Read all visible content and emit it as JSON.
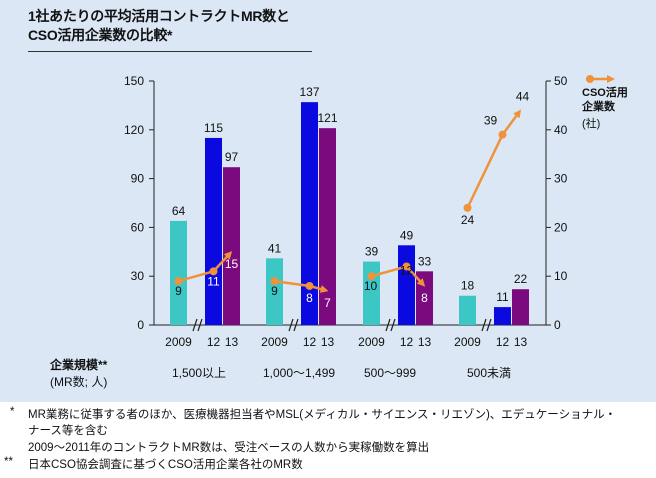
{
  "title_line1": "1社あたりの平均活用コントラクトMR数と",
  "title_line2": "CSO活用企業数の比較*",
  "x_heading": "企業規模**",
  "x_unit": "(MR数; 人)",
  "right_axis_title_line1": "CSO活用",
  "right_axis_title_line2": "企業数",
  "right_axis_unit": "(社)",
  "footnotes": {
    "mark1": "*",
    "line1": "MR業務に従事する者のほか、医療機器担当者やMSL(メディカル・サイエンス・リエゾン)、エデュケーショナル・",
    "line2": "ナース等を含む",
    "line3": "2009〜2011年のコントラクトMR数は、受注ベースの人数から実稼働数を算出",
    "mark2": "**",
    "line4": "日本CSO協会調査に基づくCSO活用企業各社のMR数"
  },
  "chart_data": {
    "type": "bar",
    "categories": [
      "1,500以上",
      "1,000〜1,499",
      "500〜999",
      "500未満"
    ],
    "bar_year_labels": [
      "2009",
      "12",
      "13"
    ],
    "left_axis": {
      "ylim": [
        0,
        150
      ],
      "ticks": [
        0,
        30,
        60,
        90,
        120,
        150
      ]
    },
    "right_axis": {
      "ylim": [
        0,
        50
      ],
      "ticks": [
        0,
        10,
        20,
        30,
        40,
        50
      ]
    },
    "bars": [
      {
        "values": [
          64,
          115,
          97
        ]
      },
      {
        "values": [
          41,
          137,
          121
        ]
      },
      {
        "values": [
          39,
          49,
          33
        ]
      },
      {
        "values": [
          18,
          11,
          22
        ]
      }
    ],
    "line": {
      "name": "CSO活用企業数",
      "groups": [
        [
          9,
          11,
          15
        ],
        [
          9,
          8,
          7
        ],
        [
          10,
          12,
          8
        ],
        [
          24,
          39,
          44
        ]
      ]
    },
    "colors": {
      "bar_2009": "#3cc7c4",
      "bar_2012": "#0a0ae0",
      "bar_2013": "#7b0a7e",
      "line": "#f0923a",
      "background": "#dbe7f5"
    }
  }
}
